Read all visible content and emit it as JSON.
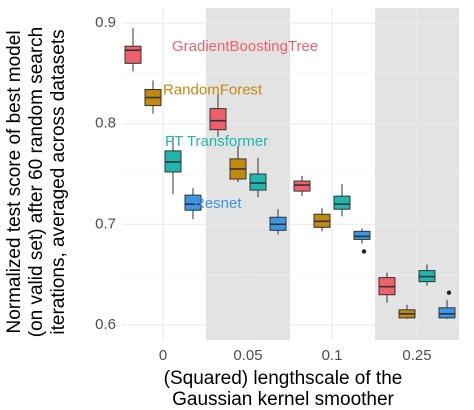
{
  "chart_data": {
    "type": "boxplot",
    "xlabel": [
      "(Squared) lengthscale of the",
      "Gaussian kernel smoother"
    ],
    "ylabel": [
      "Normalized test score of best model",
      "(on valid set) after 60 random search",
      "iterations, averaged across datasets"
    ],
    "categories": [
      "0",
      "0.05",
      "0.1",
      "0.25"
    ],
    "ylim": [
      0.585,
      0.915
    ],
    "yticks": [
      0.6,
      0.7,
      0.8,
      0.9
    ],
    "ytick_labels": [
      "0.6",
      "0.7",
      "0.8",
      "0.9"
    ],
    "shaded_categories": [
      "0.05",
      "0.25"
    ],
    "grid": true,
    "series": [
      {
        "name": "GradientBoostingTree",
        "color": "#f0606a",
        "boxes": [
          {
            "category": "0",
            "whisker_low": 0.852,
            "q1": 0.86,
            "median": 0.873,
            "q3": 0.877,
            "whisker_high": 0.895,
            "outliers": []
          },
          {
            "category": "0.05",
            "whisker_low": 0.787,
            "q1": 0.794,
            "median": 0.803,
            "q3": 0.815,
            "whisker_high": 0.83,
            "outliers": []
          },
          {
            "category": "0.1",
            "whisker_low": 0.728,
            "q1": 0.733,
            "median": 0.739,
            "q3": 0.743,
            "whisker_high": 0.748,
            "outliers": []
          },
          {
            "category": "0.25",
            "whisker_low": 0.622,
            "q1": 0.63,
            "median": 0.638,
            "q3": 0.647,
            "whisker_high": 0.652,
            "outliers": []
          }
        ]
      },
      {
        "name": "RandomForest",
        "color": "#c2890f",
        "boxes": [
          {
            "category": "0",
            "whisker_low": 0.81,
            "q1": 0.818,
            "median": 0.826,
            "q3": 0.834,
            "whisker_high": 0.843,
            "outliers": []
          },
          {
            "category": "0.05",
            "whisker_low": 0.742,
            "q1": 0.745,
            "median": 0.755,
            "q3": 0.765,
            "whisker_high": 0.778,
            "outliers": []
          },
          {
            "category": "0.1",
            "whisker_low": 0.693,
            "q1": 0.697,
            "median": 0.703,
            "q3": 0.71,
            "whisker_high": 0.716,
            "outliers": []
          },
          {
            "category": "0.25",
            "whisker_low": 0.606,
            "q1": 0.607,
            "median": 0.611,
            "q3": 0.615,
            "whisker_high": 0.62,
            "outliers": []
          }
        ]
      },
      {
        "name": "FT Transformer",
        "color": "#1fb6ad",
        "boxes": [
          {
            "category": "0",
            "whisker_low": 0.73,
            "q1": 0.752,
            "median": 0.762,
            "q3": 0.773,
            "whisker_high": 0.788,
            "outliers": []
          },
          {
            "category": "0.05",
            "whisker_low": 0.727,
            "q1": 0.734,
            "median": 0.741,
            "q3": 0.75,
            "whisker_high": 0.766,
            "outliers": []
          },
          {
            "category": "0.1",
            "whisker_low": 0.708,
            "q1": 0.715,
            "median": 0.72,
            "q3": 0.728,
            "whisker_high": 0.74,
            "outliers": []
          },
          {
            "category": "0.25",
            "whisker_low": 0.639,
            "q1": 0.643,
            "median": 0.648,
            "q3": 0.654,
            "whisker_high": 0.66,
            "outliers": []
          }
        ]
      },
      {
        "name": "Resnet",
        "color": "#3b97e6",
        "boxes": [
          {
            "category": "0",
            "whisker_low": 0.705,
            "q1": 0.714,
            "median": 0.72,
            "q3": 0.729,
            "whisker_high": 0.736,
            "outliers": []
          },
          {
            "category": "0.05",
            "whisker_low": 0.69,
            "q1": 0.694,
            "median": 0.7,
            "q3": 0.707,
            "whisker_high": 0.715,
            "outliers": []
          },
          {
            "category": "0.1",
            "whisker_low": 0.681,
            "q1": 0.685,
            "median": 0.688,
            "q3": 0.693,
            "whisker_high": 0.696,
            "outliers": [
              0.673
            ]
          },
          {
            "category": "0.25",
            "whisker_low": 0.606,
            "q1": 0.607,
            "median": 0.611,
            "q3": 0.617,
            "whisker_high": 0.625,
            "outliers": [
              0.632
            ]
          }
        ]
      }
    ]
  }
}
